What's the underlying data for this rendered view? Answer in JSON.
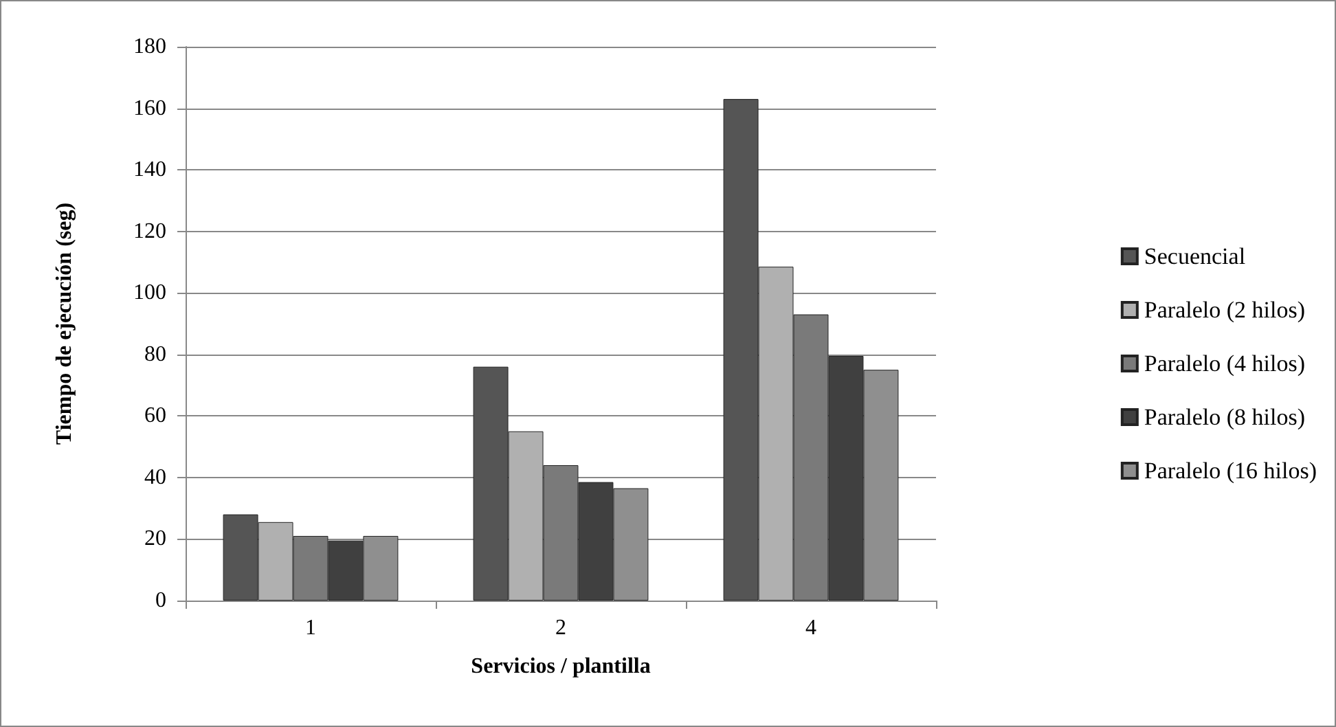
{
  "chart_data": {
    "type": "bar",
    "xlabel": "Servicios / plantilla",
    "ylabel": "Tiempo de ejecución (seg)",
    "categories": [
      "1",
      "2",
      "4"
    ],
    "series": [
      {
        "name": "Secuencial",
        "color": "#555555",
        "values": [
          28,
          76,
          163
        ]
      },
      {
        "name": "Paralelo (2 hilos)",
        "color": "#b0b0b0",
        "values": [
          25.5,
          55,
          108.5
        ]
      },
      {
        "name": "Paralelo (4 hilos)",
        "color": "#7a7a7a",
        "values": [
          21,
          44,
          93
        ]
      },
      {
        "name": "Paralelo (8 hilos)",
        "color": "#404040",
        "values": [
          19.5,
          38.5,
          79.5
        ]
      },
      {
        "name": "Paralelo (16 hilos)",
        "color": "#8f8f8f",
        "values": [
          21,
          36.5,
          75
        ]
      }
    ],
    "ylim": [
      0,
      180
    ],
    "yticks": [
      0,
      20,
      40,
      60,
      80,
      100,
      120,
      140,
      160,
      180
    ],
    "grid": "y",
    "legend": "right"
  }
}
